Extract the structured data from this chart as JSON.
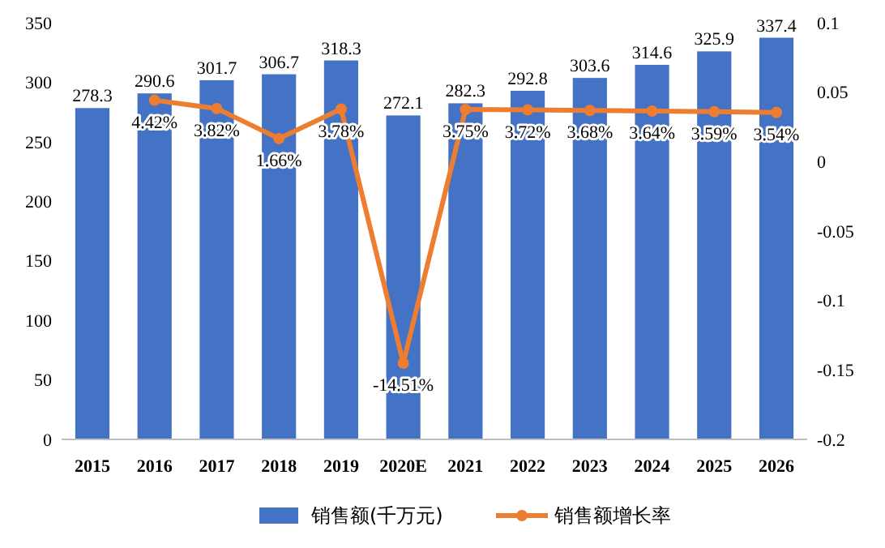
{
  "chart_data": {
    "type": "bar",
    "categories": [
      "2015",
      "2016",
      "2017",
      "2018",
      "2019",
      "2020E",
      "2021",
      "2022",
      "2023",
      "2024",
      "2025",
      "2026"
    ],
    "series": [
      {
        "name": "销售额(千万元)",
        "color": "#4472c4",
        "values": [
          278.3,
          290.6,
          301.7,
          306.7,
          318.3,
          272.1,
          282.3,
          292.8,
          303.6,
          314.6,
          325.9,
          337.4
        ],
        "value_labels": [
          "278.3",
          "290.6",
          "301.7",
          "306.7",
          "318.3",
          "272.1",
          "282.3",
          "292.8",
          "303.6",
          "314.6",
          "325.9",
          "337.4"
        ]
      },
      {
        "name": "销售额增长率",
        "type": "line",
        "axis": "y2",
        "color": "#ed7d31",
        "values": [
          null,
          0.0442,
          0.0382,
          0.0166,
          0.0378,
          -0.1451,
          0.0375,
          0.0372,
          0.0368,
          0.0364,
          0.0359,
          0.0354
        ],
        "value_labels": [
          null,
          "4.42%",
          "3.82%",
          "1.66%",
          "3.78%",
          "-14.51%",
          "3.75%",
          "3.72%",
          "3.68%",
          "3.64%",
          "3.59%",
          "3.54%"
        ]
      }
    ],
    "ylim": [
      0,
      350
    ],
    "yticks": [
      0,
      50,
      100,
      150,
      200,
      250,
      300,
      350
    ],
    "y2lim": [
      -0.2,
      0.1
    ],
    "y2ticks": [
      -0.2,
      -0.15,
      -0.1,
      -0.05,
      0,
      0.05,
      0.1
    ],
    "legend": "bottom",
    "marker": "circle",
    "grid": false
  }
}
